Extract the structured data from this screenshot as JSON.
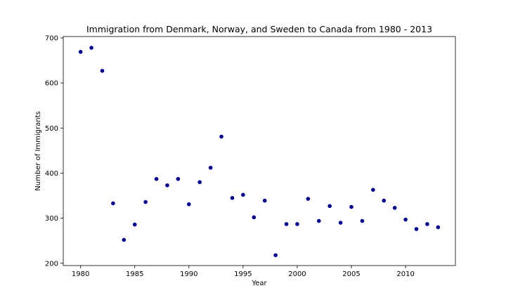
{
  "chart_data": {
    "type": "scatter",
    "title": "Immigration from Denmark, Norway, and Sweden to Canada from 1980 - 2013",
    "xlabel": "Year",
    "ylabel": "Number of Immigrants",
    "xlim": [
      1978.4,
      2014.6
    ],
    "ylim": [
      195,
      703
    ],
    "x_ticks": [
      1980,
      1985,
      1990,
      1995,
      2000,
      2005,
      2010
    ],
    "y_ticks": [
      200,
      300,
      400,
      500,
      600,
      700
    ],
    "grid": false,
    "marker_color": "#00008b",
    "x": [
      1980,
      1981,
      1982,
      1983,
      1984,
      1985,
      1986,
      1987,
      1988,
      1989,
      1990,
      1991,
      1992,
      1993,
      1994,
      1995,
      1996,
      1997,
      1998,
      1999,
      2000,
      2001,
      2002,
      2003,
      2004,
      2005,
      2006,
      2007,
      2008,
      2009,
      2010,
      2011,
      2012,
      2013
    ],
    "y": [
      669,
      678,
      627,
      333,
      252,
      286,
      336,
      387,
      373,
      387,
      331,
      380,
      412,
      481,
      345,
      352,
      302,
      339,
      218,
      287,
      287,
      343,
      294,
      327,
      290,
      325,
      294,
      363,
      339,
      323,
      297,
      276,
      287,
      280
    ]
  }
}
